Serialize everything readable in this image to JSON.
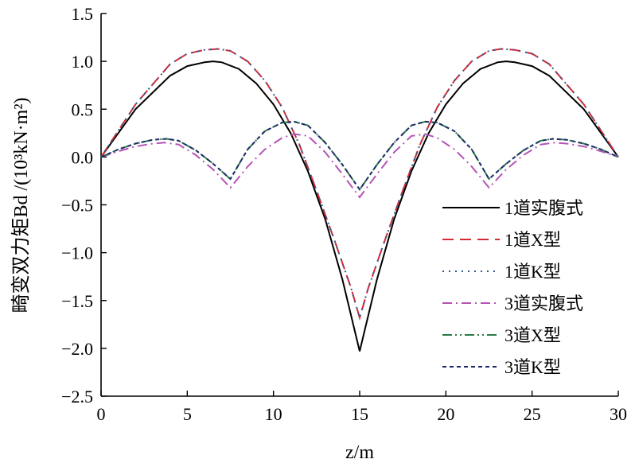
{
  "chart_data": {
    "type": "line",
    "title": "",
    "xlabel": "z/m",
    "ylabel": "畸变双力矩Bd /(10³kN·m²)",
    "xlim": [
      0,
      30
    ],
    "ylim": [
      -2.5,
      1.5
    ],
    "xticks": [
      0,
      5,
      10,
      15,
      20,
      25,
      30
    ],
    "yticks": [
      -2.5,
      -2.0,
      -1.5,
      -1.0,
      -0.5,
      0.0,
      0.5,
      1.0,
      1.5
    ],
    "xtick_labels": [
      "0",
      "5",
      "10",
      "15",
      "20",
      "25",
      "30"
    ],
    "ytick_labels": [
      "−2.5",
      "−2.0",
      "−1.5",
      "−1.0",
      "−0.5",
      "0.0",
      "0.5",
      "1.0",
      "1.5"
    ],
    "grid": false,
    "legend_position": "bottom-right",
    "series": [
      {
        "name": "1道实腹式",
        "color": "#000000",
        "dash": "solid",
        "x": [
          0,
          2,
          4,
          5,
          6,
          6.5,
          7,
          8,
          9,
          10,
          11,
          12,
          13,
          14,
          15,
          16,
          17,
          18,
          19,
          20,
          21,
          22,
          23,
          23.5,
          24,
          25,
          26,
          28,
          30
        ],
        "y": [
          0,
          0.5,
          0.85,
          0.95,
          0.99,
          1.0,
          0.99,
          0.92,
          0.77,
          0.55,
          0.25,
          -0.15,
          -0.65,
          -1.28,
          -2.03,
          -1.28,
          -0.65,
          -0.15,
          0.25,
          0.55,
          0.77,
          0.92,
          0.99,
          1.0,
          0.99,
          0.95,
          0.85,
          0.5,
          0
        ]
      },
      {
        "name": "1道X型",
        "color": "#d42a36",
        "dash": "long-dash",
        "x": [
          0,
          2,
          4,
          5,
          6,
          6.8,
          7.5,
          8.5,
          9.5,
          10.5,
          11.5,
          12.5,
          13.5,
          14.5,
          15,
          15.5,
          16.5,
          17.5,
          18.5,
          19.5,
          20.5,
          21.5,
          22.5,
          23.2,
          24,
          25,
          26,
          28,
          30
        ],
        "y": [
          0,
          0.55,
          0.97,
          1.08,
          1.12,
          1.13,
          1.11,
          1.0,
          0.8,
          0.52,
          0.13,
          -0.35,
          -0.85,
          -1.37,
          -1.68,
          -1.37,
          -0.85,
          -0.35,
          0.13,
          0.52,
          0.8,
          1.0,
          1.11,
          1.13,
          1.12,
          1.08,
          0.97,
          0.55,
          0
        ]
      },
      {
        "name": "1道K型",
        "color": "#2c5c92",
        "dash": "dotted",
        "x": [
          0,
          2,
          4,
          5,
          6,
          6.8,
          7.5,
          8.5,
          9.5,
          10.5,
          11.5,
          12.5,
          13.5,
          14.5,
          15,
          15.5,
          16.5,
          17.5,
          18.5,
          19.5,
          20.5,
          21.5,
          22.5,
          23.2,
          24,
          25,
          26,
          28,
          30
        ],
        "y": [
          0,
          0.55,
          0.97,
          1.08,
          1.12,
          1.13,
          1.11,
          1.0,
          0.8,
          0.52,
          0.13,
          -0.35,
          -0.85,
          -1.37,
          -1.68,
          -1.37,
          -0.85,
          -0.35,
          0.13,
          0.52,
          0.8,
          1.0,
          1.11,
          1.13,
          1.12,
          1.08,
          0.97,
          0.55,
          0
        ]
      },
      {
        "name": "3道实腹式",
        "color": "#b553b5",
        "dash": "dash-dot",
        "x": [
          0,
          1,
          2,
          3,
          3.7,
          4.5,
          5.5,
          6.5,
          7.5,
          8.5,
          9.5,
          10.5,
          11.2,
          12,
          13,
          14,
          15,
          16,
          17,
          18,
          18.8,
          19.5,
          20.5,
          21.5,
          22.5,
          23.5,
          24.5,
          25.5,
          26.3,
          27,
          28,
          29,
          30
        ],
        "y": [
          0,
          0.06,
          0.11,
          0.14,
          0.15,
          0.13,
          0.02,
          -0.13,
          -0.32,
          -0.1,
          0.08,
          0.2,
          0.24,
          0.22,
          0.05,
          -0.18,
          -0.42,
          -0.18,
          0.05,
          0.22,
          0.24,
          0.2,
          0.08,
          -0.1,
          -0.32,
          -0.13,
          0.02,
          0.13,
          0.15,
          0.14,
          0.11,
          0.06,
          0
        ]
      },
      {
        "name": "3道X型",
        "color": "#2a7a45",
        "dash": "dash-dot-dot",
        "x": [
          0,
          1,
          2,
          3,
          3.8,
          4.5,
          5.5,
          6.5,
          7.5,
          8.5,
          9.5,
          10.5,
          11.2,
          12,
          13,
          14,
          15,
          16,
          17,
          18,
          18.8,
          19.5,
          20.5,
          21.5,
          22.5,
          23.5,
          24.5,
          25.5,
          26.2,
          27,
          28,
          29,
          30
        ],
        "y": [
          0,
          0.08,
          0.14,
          0.18,
          0.19,
          0.17,
          0.07,
          -0.07,
          -0.23,
          0.08,
          0.27,
          0.36,
          0.37,
          0.33,
          0.15,
          -0.08,
          -0.34,
          -0.08,
          0.15,
          0.33,
          0.37,
          0.36,
          0.27,
          0.08,
          -0.23,
          -0.07,
          0.07,
          0.17,
          0.19,
          0.18,
          0.14,
          0.08,
          0
        ]
      },
      {
        "name": "3道K型",
        "color": "#1f2a6b",
        "dash": "short-dash",
        "x": [
          0,
          1,
          2,
          3,
          3.8,
          4.5,
          5.5,
          6.5,
          7.5,
          8.5,
          9.5,
          10.5,
          11.2,
          12,
          13,
          14,
          15,
          16,
          17,
          18,
          18.8,
          19.5,
          20.5,
          21.5,
          22.5,
          23.5,
          24.5,
          25.5,
          26.2,
          27,
          28,
          29,
          30
        ],
        "y": [
          0,
          0.08,
          0.14,
          0.18,
          0.19,
          0.17,
          0.07,
          -0.07,
          -0.23,
          0.08,
          0.27,
          0.36,
          0.37,
          0.33,
          0.15,
          -0.08,
          -0.34,
          -0.08,
          0.15,
          0.33,
          0.37,
          0.36,
          0.27,
          0.08,
          -0.23,
          -0.07,
          0.07,
          0.17,
          0.19,
          0.18,
          0.14,
          0.08,
          0
        ]
      }
    ]
  }
}
